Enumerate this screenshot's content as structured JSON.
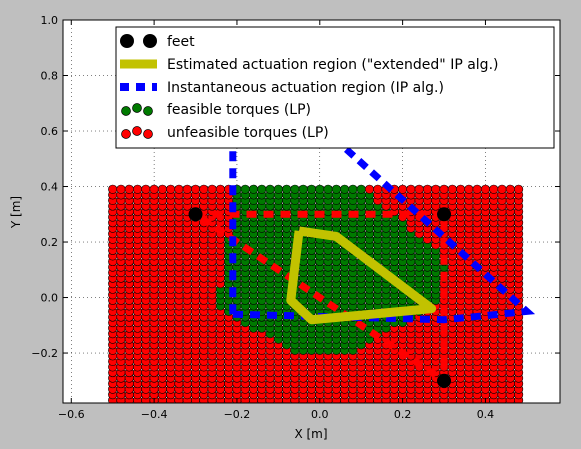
{
  "chart_data": {
    "type": "scatter",
    "title": "",
    "xlabel": "X [m]",
    "ylabel": "Y [m]",
    "xlim": [
      -0.62,
      0.58
    ],
    "ylim": [
      -0.38,
      1.0
    ],
    "xticks": [
      "−0.6",
      "−0.4",
      "−0.2",
      "0.0",
      "0.2",
      "0.4"
    ],
    "xtick_values": [
      -0.6,
      -0.4,
      -0.2,
      0.0,
      0.2,
      0.4
    ],
    "yticks": [
      "−0.2",
      "0.0",
      "0.2",
      "0.4",
      "0.6",
      "0.8",
      "1.0"
    ],
    "ytick_values": [
      -0.2,
      0.0,
      0.2,
      0.4,
      0.6,
      0.8,
      1.0
    ],
    "grid": true,
    "legend_position": "top-right",
    "colors": {
      "feasible": "#007a00",
      "unfeasible": "#ff0000",
      "feet": "#000000",
      "estimated": "#c2c200",
      "instantaneous": "#0000ff"
    },
    "grid_points": {
      "x_min": -0.5,
      "x_max": 0.48,
      "x_step": 0.02,
      "y_min": -0.39,
      "y_max": 0.39,
      "y_step": 0.02,
      "feasible_region": [
        [
          -0.2,
          0.4
        ],
        [
          0.1,
          0.4
        ],
        [
          0.32,
          0.12
        ],
        [
          0.28,
          -0.02
        ],
        [
          0.08,
          -0.2
        ],
        [
          -0.05,
          -0.2
        ],
        [
          -0.25,
          -0.04
        ]
      ]
    },
    "series": [
      {
        "name": "feet",
        "marker": "filled-circle",
        "points": [
          [
            -0.3,
            0.3
          ],
          [
            0.3,
            0.3
          ],
          [
            0.3,
            -0.3
          ]
        ]
      },
      {
        "name": "Estimated actuation region (\"extended\" IP alg.)",
        "style": "solid-thick",
        "points": [
          [
            -0.05,
            0.24
          ],
          [
            0.04,
            0.22
          ],
          [
            0.27,
            -0.04
          ],
          [
            -0.02,
            -0.08
          ],
          [
            -0.07,
            -0.01
          ],
          [
            -0.05,
            0.24
          ]
        ]
      },
      {
        "name": "Instantaneous actuation region (IP alg.)",
        "style": "dashed-thick",
        "points": [
          [
            -0.21,
            -0.06
          ],
          [
            -0.21,
            0.6
          ],
          [
            0.0,
            0.62
          ],
          [
            0.5,
            -0.05
          ],
          [
            0.3,
            -0.08
          ],
          [
            -0.21,
            -0.06
          ]
        ]
      },
      {
        "name": "",
        "style": "dashed-thick",
        "color": "#ff0000",
        "points": [
          [
            -0.3,
            0.3
          ],
          [
            0.3,
            0.3
          ],
          [
            0.3,
            -0.3
          ],
          [
            -0.3,
            0.3
          ]
        ]
      }
    ],
    "legend": [
      "feet",
      "Estimated actuation region (\"extended\" IP alg.)",
      "Instantaneous actuation region (IP alg.)",
      "feasible torques (LP)",
      "unfeasible torques (LP)"
    ]
  }
}
